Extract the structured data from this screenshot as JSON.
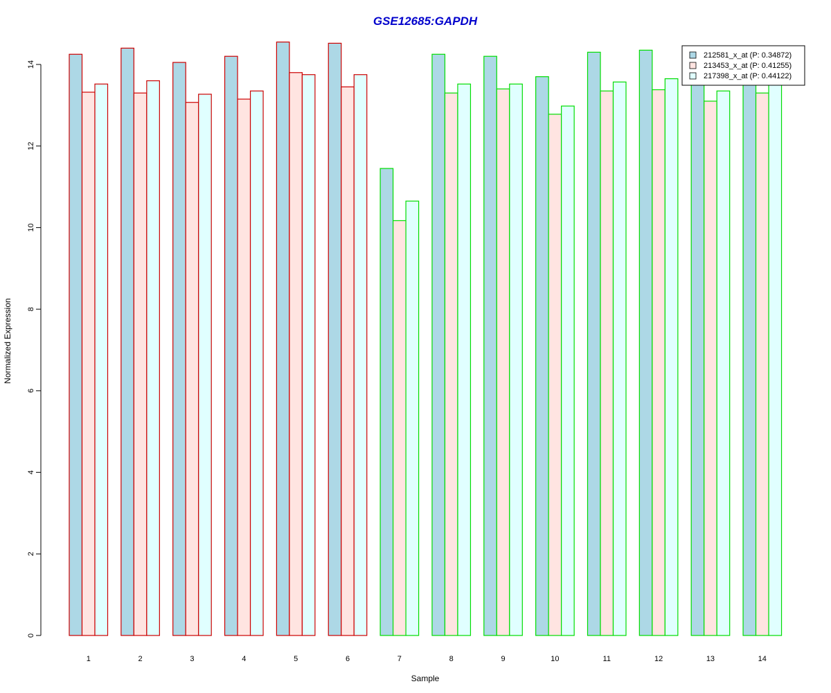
{
  "chart_data": {
    "type": "bar",
    "title": "GSE12685:GAPDH",
    "xlabel": "Sample",
    "ylabel": "Normalized Expression",
    "ylim": [
      0,
      14.8
    ],
    "yticks": [
      0,
      2,
      4,
      6,
      8,
      10,
      12,
      14
    ],
    "categories": [
      "1",
      "2",
      "3",
      "4",
      "5",
      "6",
      "7",
      "8",
      "9",
      "10",
      "11",
      "12",
      "13",
      "14"
    ],
    "groups": [
      1,
      1,
      1,
      1,
      1,
      1,
      2,
      2,
      2,
      2,
      2,
      2,
      2,
      2
    ],
    "group_border_colors": {
      "1": "#cc0000",
      "2": "#00dd00"
    },
    "series": [
      {
        "name": "212581_x_at (P: 0.34872)",
        "color": "#add8e6",
        "values": [
          14.25,
          14.4,
          14.05,
          14.2,
          14.55,
          14.52,
          11.45,
          14.25,
          14.2,
          13.7,
          14.3,
          14.35,
          13.6,
          13.6
        ]
      },
      {
        "name": "213453_x_at (P: 0.41255)",
        "color": "#ffe4e1",
        "values": [
          13.32,
          13.3,
          13.07,
          13.15,
          13.8,
          13.45,
          10.17,
          13.3,
          13.4,
          12.78,
          13.35,
          13.38,
          13.1,
          13.3
        ]
      },
      {
        "name": "217398_x_at (P: 0.44122)",
        "color": "#e0ffff",
        "values": [
          13.52,
          13.6,
          13.27,
          13.35,
          13.75,
          13.75,
          10.65,
          13.52,
          13.52,
          12.98,
          13.57,
          13.65,
          13.35,
          13.55
        ]
      }
    ],
    "legend_position": "top-right",
    "grid": false
  }
}
